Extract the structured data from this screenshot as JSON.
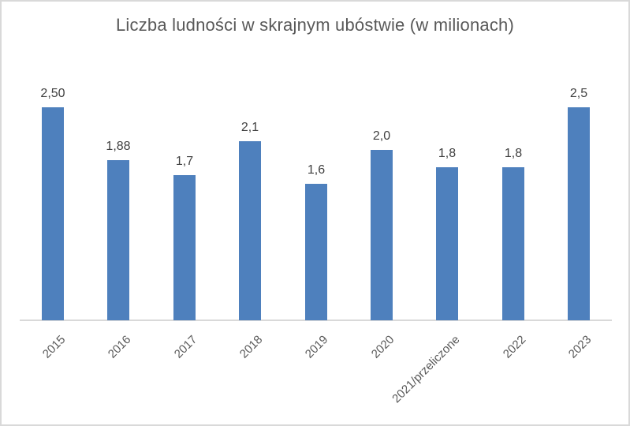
{
  "chart_data": {
    "type": "bar",
    "title": "Liczba ludności w skrajnym ubóstwie (w milionach)",
    "categories": [
      "2015",
      "2016",
      "2017",
      "2018",
      "2019",
      "2020",
      "2021/przeliczone",
      "2022",
      "2023"
    ],
    "values": [
      2.5,
      1.88,
      1.7,
      2.1,
      1.6,
      2.0,
      1.8,
      1.8,
      2.5
    ],
    "value_labels": [
      "2,50",
      "1,88",
      "1,7",
      "2,1",
      "1,6",
      "2,0",
      "1,8",
      "1,8",
      "2,5"
    ],
    "xlabel": "",
    "ylabel": "",
    "ylim": [
      0,
      2.8
    ],
    "grid": false,
    "legend": "none",
    "colors": {
      "bar": "#4E80BD",
      "axis_line": "#D9D9D9",
      "title_text": "#595959",
      "tick_label_text": "#595959",
      "value_label_text": "#404040",
      "frame_border": "#D9D9D9"
    }
  }
}
